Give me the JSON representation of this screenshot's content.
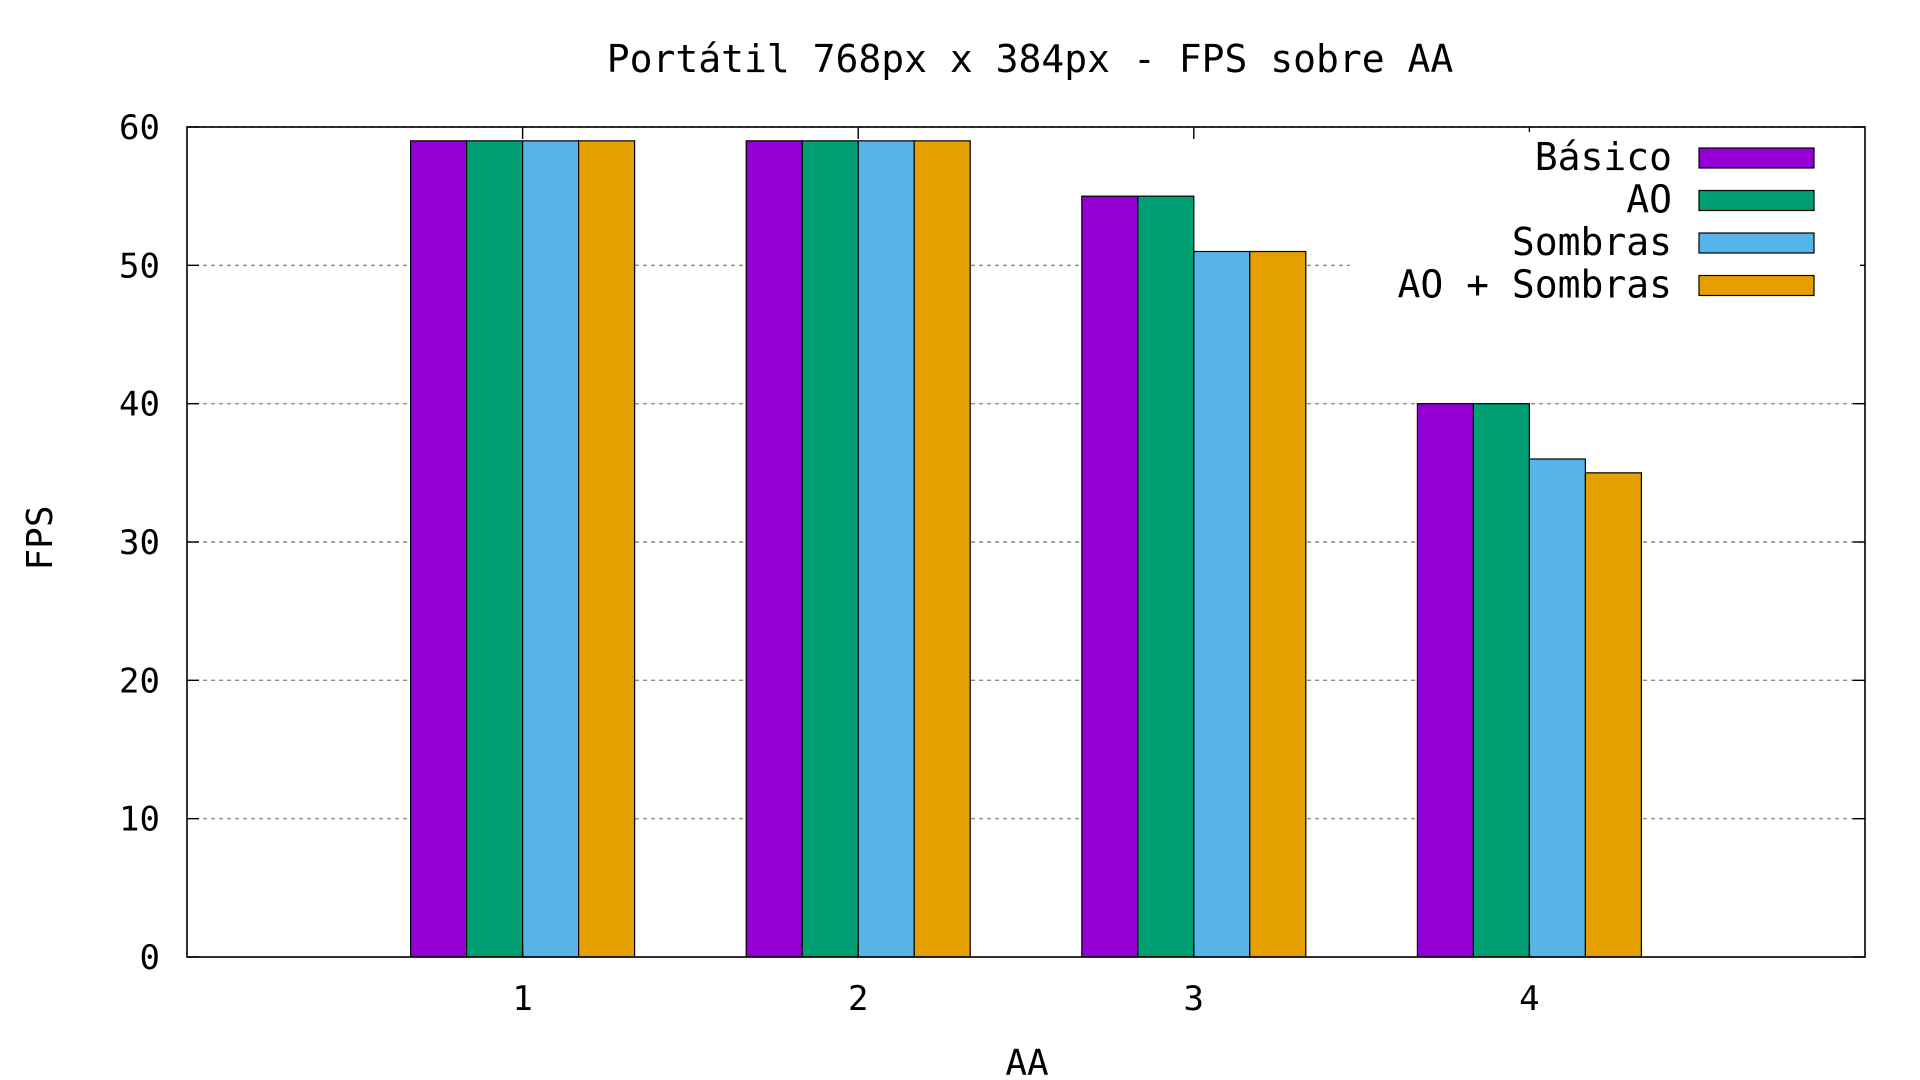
{
  "chart_data": {
    "type": "bar",
    "title": "Portátil 768px x 384px - FPS sobre AA",
    "xlabel": "AA",
    "ylabel": "FPS",
    "categories": [
      "1",
      "2",
      "3",
      "4"
    ],
    "ylim": [
      0,
      60
    ],
    "yticks": [
      "0",
      "10",
      "20",
      "30",
      "40",
      "50",
      "60"
    ],
    "grid": true,
    "legend_position": "top-right",
    "series": [
      {
        "name": "Básico",
        "color": "#9400d3",
        "values": [
          59,
          59,
          55,
          40
        ]
      },
      {
        "name": "AO",
        "color": "#009e73",
        "values": [
          59,
          59,
          55,
          40
        ]
      },
      {
        "name": "Sombras",
        "color": "#56b4e9",
        "values": [
          59,
          59,
          51,
          36
        ]
      },
      {
        "name": "AO + Sombras",
        "color": "#e69f00",
        "values": [
          59,
          59,
          51,
          35
        ]
      }
    ]
  }
}
